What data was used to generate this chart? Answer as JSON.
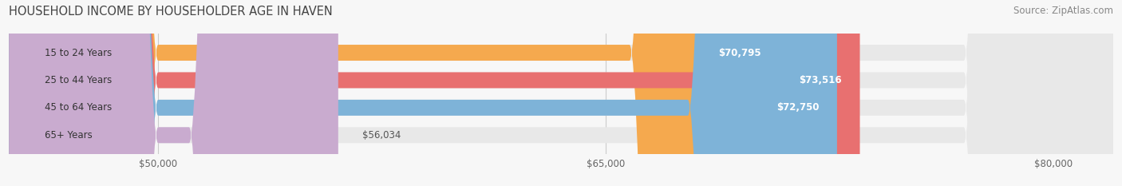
{
  "title": "HOUSEHOLD INCOME BY HOUSEHOLDER AGE IN HAVEN",
  "source": "Source: ZipAtlas.com",
  "categories": [
    "15 to 24 Years",
    "25 to 44 Years",
    "45 to 64 Years",
    "65+ Years"
  ],
  "values": [
    70795,
    73516,
    72750,
    56034
  ],
  "bar_colors": [
    "#F5A94E",
    "#E87070",
    "#7EB3D8",
    "#C9ABCF"
  ],
  "bar_bg_color": "#E8E8E8",
  "value_labels": [
    "$70,795",
    "$73,516",
    "$72,750",
    "$56,034"
  ],
  "x_min": 45000,
  "x_max": 82000,
  "x_ticks": [
    50000,
    65000,
    80000
  ],
  "x_tick_labels": [
    "$50,000",
    "$65,000",
    "$80,000"
  ],
  "title_fontsize": 10.5,
  "label_fontsize": 8.5,
  "value_fontsize": 8.5,
  "source_fontsize": 8.5,
  "background_color": "#F7F7F7"
}
